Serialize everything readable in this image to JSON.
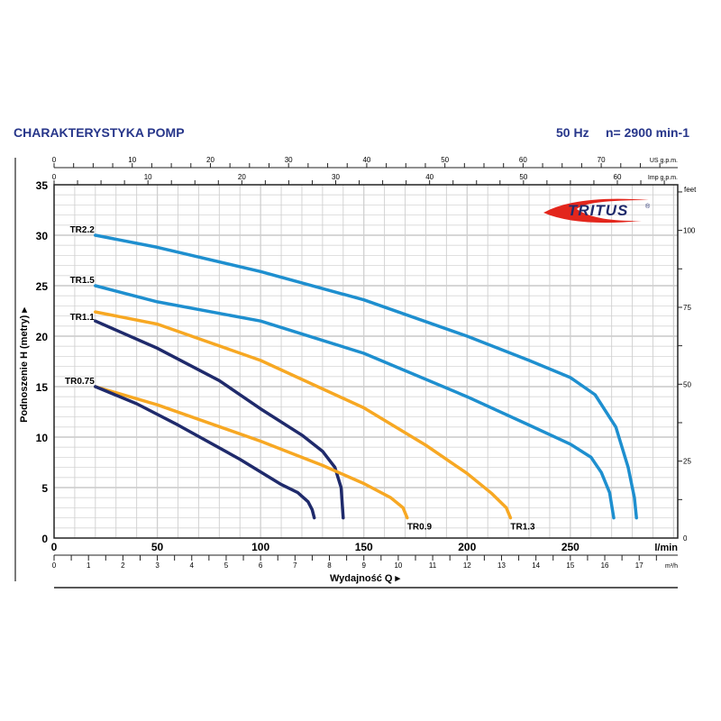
{
  "header": {
    "title": "CHARAKTERYSTYKA POMP",
    "frequency": "50 Hz",
    "speed": "n= 2900 min-1"
  },
  "logo": {
    "text": "TRITUS",
    "registered": "®"
  },
  "colors": {
    "title": "#27368a",
    "light_blue": "#1e8fcf",
    "orange": "#f7a823",
    "navy": "#1f2a6b",
    "logo_red": "#e3261c"
  },
  "chart_data": {
    "type": "line",
    "xlabel": "Wydajność Q",
    "ylabel": "Podnoszenie H (metry)",
    "x_unit": "l/min",
    "xlim": [
      0,
      302
    ],
    "ylim": [
      0,
      35
    ],
    "grid": true,
    "x_ticks": [
      0,
      50,
      100,
      150,
      200,
      250
    ],
    "y_ticks": [
      0,
      5,
      10,
      15,
      20,
      25,
      30,
      35
    ],
    "secondary_axes": {
      "us_gpm": {
        "label": "US g.p.m.",
        "ticks": [
          0,
          10,
          20,
          30,
          40,
          50,
          60,
          70
        ]
      },
      "imp_gpm": {
        "label": "Imp g.p.m.",
        "ticks": [
          0,
          10,
          20,
          30,
          40,
          50,
          60
        ]
      },
      "m3h": {
        "label": "m³/h",
        "ticks": [
          0,
          1,
          2,
          3,
          4,
          5,
          6,
          7,
          8,
          9,
          10,
          11,
          12,
          13,
          14,
          15,
          16,
          17
        ]
      },
      "feet": {
        "label": "feet",
        "ticks": [
          0,
          25,
          50,
          75,
          100
        ]
      }
    },
    "series": [
      {
        "name": "TR2.2",
        "color": "light_blue",
        "points": [
          [
            20,
            30
          ],
          [
            50,
            28.8
          ],
          [
            100,
            26.4
          ],
          [
            150,
            23.6
          ],
          [
            200,
            20
          ],
          [
            230,
            17.6
          ],
          [
            250,
            15.9
          ],
          [
            262,
            14.2
          ],
          [
            272,
            11
          ],
          [
            278,
            7
          ],
          [
            281,
            4
          ],
          [
            282,
            2
          ]
        ]
      },
      {
        "name": "TR1.5",
        "color": "light_blue",
        "points": [
          [
            20,
            25
          ],
          [
            50,
            23.4
          ],
          [
            100,
            21.5
          ],
          [
            150,
            18.3
          ],
          [
            200,
            14
          ],
          [
            230,
            11.2
          ],
          [
            250,
            9.3
          ],
          [
            260,
            8
          ],
          [
            265,
            6.5
          ],
          [
            269,
            4.5
          ],
          [
            271,
            2
          ]
        ]
      },
      {
        "name": "TR1.3",
        "color": "orange",
        "points": [
          [
            20,
            22.4
          ],
          [
            50,
            21.2
          ],
          [
            100,
            17.6
          ],
          [
            150,
            12.9
          ],
          [
            180,
            9.2
          ],
          [
            200,
            6.4
          ],
          [
            212,
            4.4
          ],
          [
            219,
            3
          ],
          [
            221,
            2
          ]
        ]
      },
      {
        "name": "TR1.1",
        "color": "navy",
        "points": [
          [
            20,
            21.5
          ],
          [
            50,
            18.8
          ],
          [
            80,
            15.6
          ],
          [
            100,
            12.8
          ],
          [
            120,
            10.2
          ],
          [
            130,
            8.6
          ],
          [
            136,
            7
          ],
          [
            139,
            5
          ],
          [
            140,
            2
          ]
        ]
      },
      {
        "name": "TR0.9",
        "color": "orange",
        "points": [
          [
            20,
            15
          ],
          [
            50,
            13.2
          ],
          [
            100,
            9.6
          ],
          [
            130,
            7.2
          ],
          [
            150,
            5.4
          ],
          [
            163,
            4
          ],
          [
            169,
            3
          ],
          [
            171,
            2
          ]
        ]
      },
      {
        "name": "TR0.75",
        "color": "navy",
        "points": [
          [
            20,
            15
          ],
          [
            40,
            13.3
          ],
          [
            60,
            11.2
          ],
          [
            90,
            7.8
          ],
          [
            110,
            5.3
          ],
          [
            118,
            4.5
          ],
          [
            123,
            3.6
          ],
          [
            125,
            2.8
          ],
          [
            126,
            2
          ]
        ]
      }
    ],
    "labels_left": [
      "TR2.2",
      "TR1.5",
      "TR1.1",
      "TR0.75"
    ],
    "labels_end": [
      "TR0.9",
      "TR1.3"
    ]
  }
}
